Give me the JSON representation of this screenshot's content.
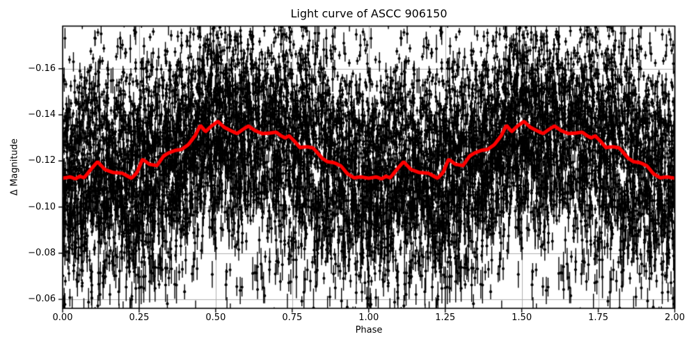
{
  "chart_data": {
    "type": "scatter",
    "title": "Light curve of ASCC 906150",
    "xlabel": "Phase",
    "ylabel": "Δ Magnitude",
    "xlim": [
      0.0,
      2.0
    ],
    "ylim": [
      -0.0561,
      -0.1785
    ],
    "y_axis_inverted": true,
    "grid": true,
    "grid_color": "#b0b0b0",
    "background_color": "#ffffff",
    "x_ticks": [
      0.0,
      0.25,
      0.5,
      0.75,
      1.0,
      1.25,
      1.5,
      1.75,
      2.0
    ],
    "x_tick_labels": [
      "0.00",
      "0.25",
      "0.50",
      "0.75",
      "1.00",
      "1.25",
      "1.50",
      "1.75",
      "2.00"
    ],
    "y_ticks": [
      -0.16,
      -0.14,
      -0.12,
      -0.1,
      -0.08,
      -0.06
    ],
    "y_tick_labels": [
      "−0.16",
      "−0.14",
      "−0.12",
      "−0.10",
      "−0.08",
      "−0.06"
    ],
    "series": [
      {
        "name": "observations",
        "type": "errorbar-scatter",
        "color": "#000000",
        "marker": "circle",
        "marker_radius": 2.1,
        "errorbar_line_width": 1.4,
        "phase_period": 1.0,
        "plotted_twice_over_phase_0_to_2": true,
        "generated": true,
        "n_points_per_period": 5000,
        "mag_sigma": 0.0225,
        "outlier_fraction": 0.1,
        "outlier_sigma": 0.042,
        "errorbar_half_base": 0.0016,
        "errorbar_half_spread": 0.0045,
        "faint_errorbar_scale": 0.08,
        "seed": 12345
      },
      {
        "name": "smoothed-trend",
        "type": "line",
        "color": "#ff0000",
        "line_width": 5,
        "phase_period": 1.0,
        "points": [
          [
            0.0,
            -0.1125
          ],
          [
            0.025,
            -0.1131
          ],
          [
            0.042,
            -0.1122
          ],
          [
            0.056,
            -0.1134
          ],
          [
            0.07,
            -0.1127
          ],
          [
            0.09,
            -0.116
          ],
          [
            0.114,
            -0.1197
          ],
          [
            0.138,
            -0.1163
          ],
          [
            0.165,
            -0.115
          ],
          [
            0.195,
            -0.1147
          ],
          [
            0.225,
            -0.1125
          ],
          [
            0.243,
            -0.115
          ],
          [
            0.261,
            -0.1208
          ],
          [
            0.283,
            -0.1186
          ],
          [
            0.308,
            -0.118
          ],
          [
            0.33,
            -0.1222
          ],
          [
            0.348,
            -0.1236
          ],
          [
            0.368,
            -0.1246
          ],
          [
            0.388,
            -0.125
          ],
          [
            0.41,
            -0.127
          ],
          [
            0.432,
            -0.1308
          ],
          [
            0.45,
            -0.1355
          ],
          [
            0.467,
            -0.1327
          ],
          [
            0.483,
            -0.1348
          ],
          [
            0.507,
            -0.1372
          ],
          [
            0.528,
            -0.1346
          ],
          [
            0.55,
            -0.1331
          ],
          [
            0.57,
            -0.1319
          ],
          [
            0.59,
            -0.1338
          ],
          [
            0.607,
            -0.1352
          ],
          [
            0.628,
            -0.1332
          ],
          [
            0.652,
            -0.1319
          ],
          [
            0.675,
            -0.1321
          ],
          [
            0.698,
            -0.1325
          ],
          [
            0.714,
            -0.1309
          ],
          [
            0.727,
            -0.13
          ],
          [
            0.74,
            -0.1309
          ],
          [
            0.758,
            -0.1285
          ],
          [
            0.775,
            -0.1258
          ],
          [
            0.798,
            -0.1262
          ],
          [
            0.818,
            -0.1257
          ],
          [
            0.835,
            -0.1232
          ],
          [
            0.848,
            -0.1212
          ],
          [
            0.865,
            -0.1197
          ],
          [
            0.886,
            -0.1193
          ],
          [
            0.909,
            -0.1179
          ],
          [
            0.93,
            -0.1145
          ],
          [
            0.952,
            -0.1127
          ],
          [
            0.975,
            -0.1131
          ],
          [
            1.0,
            -0.1125
          ]
        ]
      }
    ]
  }
}
